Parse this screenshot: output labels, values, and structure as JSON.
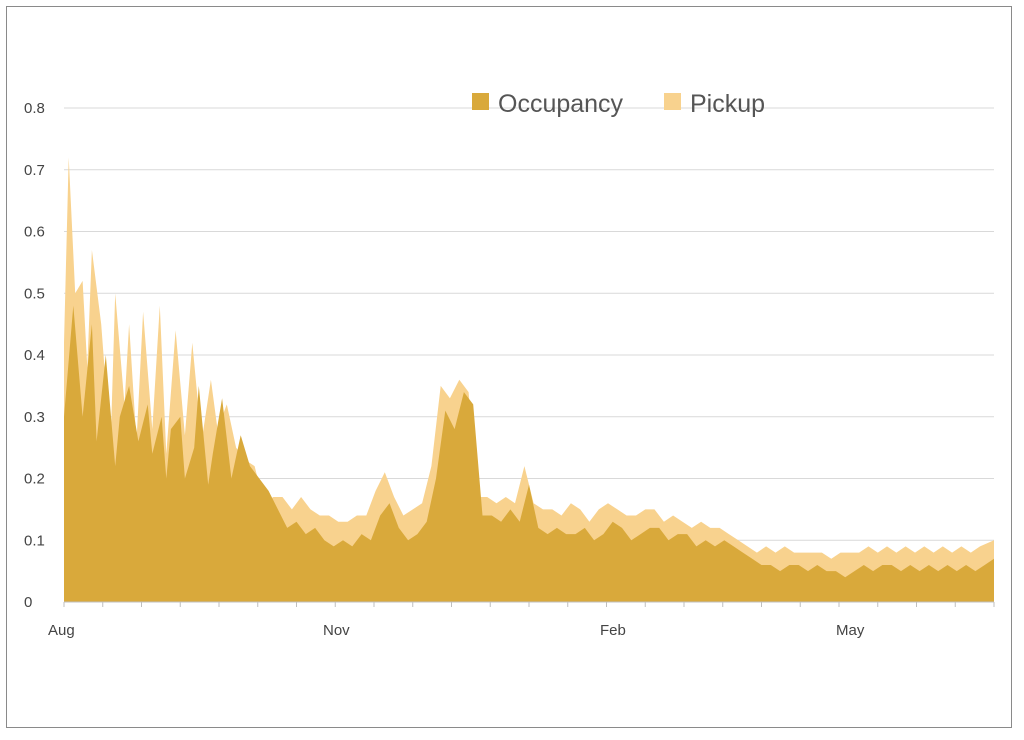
{
  "chart_data": {
    "type": "area",
    "stacked": true,
    "title": "",
    "xlabel": "",
    "ylabel": "",
    "ylim": [
      0,
      0.8
    ],
    "yticks": [
      "0",
      "0.1",
      "0.2",
      "0.3",
      "0.4",
      "0.5",
      "0.6",
      "0.7",
      "0.8"
    ],
    "xticks": [
      "Aug",
      "Nov",
      "Feb",
      "May"
    ],
    "grid": "horizontal",
    "legend_position": "top-center",
    "colors": {
      "occupancy": "#D9A93B",
      "pickup": "#F8D28E"
    },
    "series": [
      {
        "name": "Occupancy",
        "key": "occupancy",
        "points": [
          [
            0,
            0.3
          ],
          [
            0.01,
            0.48
          ],
          [
            0.02,
            0.3
          ],
          [
            0.03,
            0.45
          ],
          [
            0.035,
            0.26
          ],
          [
            0.045,
            0.4
          ],
          [
            0.055,
            0.22
          ],
          [
            0.06,
            0.3
          ],
          [
            0.07,
            0.35
          ],
          [
            0.08,
            0.26
          ],
          [
            0.09,
            0.32
          ],
          [
            0.095,
            0.24
          ],
          [
            0.105,
            0.3
          ],
          [
            0.11,
            0.2
          ],
          [
            0.115,
            0.28
          ],
          [
            0.125,
            0.3
          ],
          [
            0.13,
            0.2
          ],
          [
            0.14,
            0.25
          ],
          [
            0.145,
            0.35
          ],
          [
            0.155,
            0.19
          ],
          [
            0.16,
            0.24
          ],
          [
            0.17,
            0.33
          ],
          [
            0.18,
            0.2
          ],
          [
            0.19,
            0.27
          ],
          [
            0.2,
            0.22
          ],
          [
            0.21,
            0.2
          ],
          [
            0.22,
            0.18
          ],
          [
            0.23,
            0.15
          ],
          [
            0.24,
            0.12
          ],
          [
            0.25,
            0.13
          ],
          [
            0.26,
            0.11
          ],
          [
            0.27,
            0.12
          ],
          [
            0.28,
            0.1
          ],
          [
            0.29,
            0.09
          ],
          [
            0.3,
            0.1
          ],
          [
            0.31,
            0.09
          ],
          [
            0.32,
            0.11
          ],
          [
            0.33,
            0.1
          ],
          [
            0.34,
            0.14
          ],
          [
            0.35,
            0.16
          ],
          [
            0.36,
            0.12
          ],
          [
            0.37,
            0.1
          ],
          [
            0.38,
            0.11
          ],
          [
            0.39,
            0.13
          ],
          [
            0.4,
            0.2
          ],
          [
            0.41,
            0.31
          ],
          [
            0.42,
            0.28
          ],
          [
            0.43,
            0.34
          ],
          [
            0.44,
            0.32
          ],
          [
            0.45,
            0.14
          ],
          [
            0.46,
            0.14
          ],
          [
            0.47,
            0.13
          ],
          [
            0.48,
            0.15
          ],
          [
            0.49,
            0.13
          ],
          [
            0.5,
            0.19
          ],
          [
            0.51,
            0.12
          ],
          [
            0.52,
            0.11
          ],
          [
            0.53,
            0.12
          ],
          [
            0.54,
            0.11
          ],
          [
            0.55,
            0.11
          ],
          [
            0.56,
            0.12
          ],
          [
            0.57,
            0.1
          ],
          [
            0.58,
            0.11
          ],
          [
            0.59,
            0.13
          ],
          [
            0.6,
            0.12
          ],
          [
            0.61,
            0.1
          ],
          [
            0.62,
            0.11
          ],
          [
            0.63,
            0.12
          ],
          [
            0.64,
            0.12
          ],
          [
            0.65,
            0.1
          ],
          [
            0.66,
            0.11
          ],
          [
            0.67,
            0.11
          ],
          [
            0.68,
            0.09
          ],
          [
            0.69,
            0.1
          ],
          [
            0.7,
            0.09
          ],
          [
            0.71,
            0.1
          ],
          [
            0.72,
            0.09
          ],
          [
            0.73,
            0.08
          ],
          [
            0.74,
            0.07
          ],
          [
            0.75,
            0.06
          ],
          [
            0.76,
            0.06
          ],
          [
            0.77,
            0.05
          ],
          [
            0.78,
            0.06
          ],
          [
            0.79,
            0.06
          ],
          [
            0.8,
            0.05
          ],
          [
            0.81,
            0.06
          ],
          [
            0.82,
            0.05
          ],
          [
            0.83,
            0.05
          ],
          [
            0.84,
            0.04
          ],
          [
            0.85,
            0.05
          ],
          [
            0.86,
            0.06
          ],
          [
            0.87,
            0.05
          ],
          [
            0.88,
            0.06
          ],
          [
            0.89,
            0.06
          ],
          [
            0.9,
            0.05
          ],
          [
            0.91,
            0.06
          ],
          [
            0.92,
            0.05
          ],
          [
            0.93,
            0.06
          ],
          [
            0.94,
            0.05
          ],
          [
            0.95,
            0.06
          ],
          [
            0.96,
            0.05
          ],
          [
            0.97,
            0.06
          ],
          [
            0.98,
            0.05
          ],
          [
            0.99,
            0.06
          ],
          [
            1.0,
            0.07
          ]
        ]
      },
      {
        "name": "Pickup",
        "key": "pickup",
        "points": [
          [
            0,
            0.42
          ],
          [
            0.005,
            0.72
          ],
          [
            0.012,
            0.5
          ],
          [
            0.02,
            0.52
          ],
          [
            0.025,
            0.38
          ],
          [
            0.03,
            0.57
          ],
          [
            0.04,
            0.45
          ],
          [
            0.05,
            0.25
          ],
          [
            0.055,
            0.5
          ],
          [
            0.065,
            0.32
          ],
          [
            0.07,
            0.45
          ],
          [
            0.078,
            0.26
          ],
          [
            0.085,
            0.47
          ],
          [
            0.095,
            0.28
          ],
          [
            0.103,
            0.48
          ],
          [
            0.11,
            0.24
          ],
          [
            0.12,
            0.44
          ],
          [
            0.13,
            0.27
          ],
          [
            0.138,
            0.42
          ],
          [
            0.148,
            0.26
          ],
          [
            0.158,
            0.36
          ],
          [
            0.165,
            0.28
          ],
          [
            0.175,
            0.32
          ],
          [
            0.185,
            0.25
          ],
          [
            0.195,
            0.23
          ],
          [
            0.205,
            0.22
          ],
          [
            0.215,
            0.16
          ],
          [
            0.225,
            0.17
          ],
          [
            0.235,
            0.17
          ],
          [
            0.245,
            0.15
          ],
          [
            0.255,
            0.17
          ],
          [
            0.265,
            0.15
          ],
          [
            0.275,
            0.14
          ],
          [
            0.285,
            0.14
          ],
          [
            0.295,
            0.13
          ],
          [
            0.305,
            0.13
          ],
          [
            0.315,
            0.14
          ],
          [
            0.325,
            0.14
          ],
          [
            0.335,
            0.18
          ],
          [
            0.345,
            0.21
          ],
          [
            0.355,
            0.17
          ],
          [
            0.365,
            0.14
          ],
          [
            0.375,
            0.15
          ],
          [
            0.385,
            0.16
          ],
          [
            0.395,
            0.22
          ],
          [
            0.405,
            0.35
          ],
          [
            0.415,
            0.33
          ],
          [
            0.425,
            0.36
          ],
          [
            0.435,
            0.34
          ],
          [
            0.445,
            0.17
          ],
          [
            0.455,
            0.17
          ],
          [
            0.465,
            0.16
          ],
          [
            0.475,
            0.17
          ],
          [
            0.485,
            0.16
          ],
          [
            0.495,
            0.22
          ],
          [
            0.505,
            0.16
          ],
          [
            0.515,
            0.15
          ],
          [
            0.525,
            0.15
          ],
          [
            0.535,
            0.14
          ],
          [
            0.545,
            0.16
          ],
          [
            0.555,
            0.15
          ],
          [
            0.565,
            0.13
          ],
          [
            0.575,
            0.15
          ],
          [
            0.585,
            0.16
          ],
          [
            0.595,
            0.15
          ],
          [
            0.605,
            0.14
          ],
          [
            0.615,
            0.14
          ],
          [
            0.625,
            0.15
          ],
          [
            0.635,
            0.15
          ],
          [
            0.645,
            0.13
          ],
          [
            0.655,
            0.14
          ],
          [
            0.665,
            0.13
          ],
          [
            0.675,
            0.12
          ],
          [
            0.685,
            0.13
          ],
          [
            0.695,
            0.12
          ],
          [
            0.705,
            0.12
          ],
          [
            0.715,
            0.11
          ],
          [
            0.725,
            0.1
          ],
          [
            0.735,
            0.09
          ],
          [
            0.745,
            0.08
          ],
          [
            0.755,
            0.09
          ],
          [
            0.765,
            0.08
          ],
          [
            0.775,
            0.09
          ],
          [
            0.785,
            0.08
          ],
          [
            0.795,
            0.08
          ],
          [
            0.805,
            0.08
          ],
          [
            0.815,
            0.08
          ],
          [
            0.825,
            0.07
          ],
          [
            0.835,
            0.08
          ],
          [
            0.845,
            0.08
          ],
          [
            0.855,
            0.08
          ],
          [
            0.865,
            0.09
          ],
          [
            0.875,
            0.08
          ],
          [
            0.885,
            0.09
          ],
          [
            0.895,
            0.08
          ],
          [
            0.905,
            0.09
          ],
          [
            0.915,
            0.08
          ],
          [
            0.925,
            0.09
          ],
          [
            0.935,
            0.08
          ],
          [
            0.945,
            0.09
          ],
          [
            0.955,
            0.08
          ],
          [
            0.965,
            0.09
          ],
          [
            0.975,
            0.08
          ],
          [
            0.985,
            0.09
          ],
          [
            1.0,
            0.1
          ]
        ]
      }
    ]
  }
}
